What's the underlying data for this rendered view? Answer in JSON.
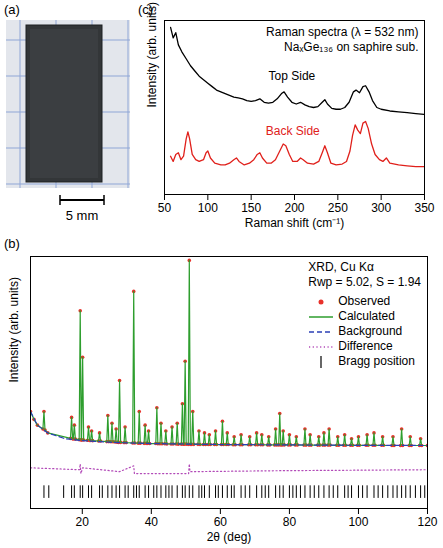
{
  "photo": {
    "panel": "(a)",
    "scale_bar": "5 mm"
  },
  "chart_data": [
    {
      "panel": "(c)",
      "type": "line",
      "title": "Raman spectra (λ = 532 nm)",
      "subtitle": "NaₓGe₁₃₆ on saphire sub.",
      "xlabel": "Raman shift (cm⁻¹)",
      "ylabel": "Intensity (arb. units)",
      "xlim": [
        50,
        350
      ],
      "xticks": [
        50,
        100,
        150,
        200,
        250,
        300,
        350
      ],
      "ylim": [
        0,
        10
      ],
      "tick_labels": "x",
      "series": [
        {
          "name": "Top Side",
          "color": "#000000",
          "x": [
            57,
            60,
            63,
            66,
            70,
            75,
            80,
            85,
            90,
            95,
            100,
            105,
            110,
            115,
            120,
            125,
            130,
            135,
            140,
            145,
            150,
            155,
            160,
            165,
            170,
            175,
            180,
            185,
            188,
            192,
            197,
            202,
            207,
            212,
            217,
            222,
            227,
            232,
            235,
            238,
            243,
            248,
            253,
            258,
            263,
            268,
            271,
            275,
            279,
            282,
            286,
            290,
            295,
            300,
            310,
            320,
            330,
            340,
            350
          ],
          "values": [
            9.6,
            9.0,
            9.3,
            8.6,
            8.2,
            7.8,
            7.4,
            7.1,
            6.8,
            6.6,
            6.4,
            6.2,
            6.0,
            5.9,
            5.8,
            5.7,
            5.6,
            5.55,
            5.5,
            5.4,
            5.35,
            5.4,
            5.5,
            5.3,
            5.25,
            5.3,
            5.5,
            5.8,
            5.9,
            5.6,
            5.3,
            5.2,
            5.3,
            5.15,
            5.05,
            5.0,
            5.05,
            5.3,
            5.45,
            5.2,
            4.95,
            4.9,
            4.9,
            5.0,
            5.3,
            5.9,
            6.0,
            5.85,
            6.2,
            6.25,
            5.9,
            5.4,
            5.0,
            4.9,
            4.8,
            4.75,
            4.7,
            4.65,
            4.6
          ]
        },
        {
          "name": "Back Side",
          "color": "#e0201b",
          "x": [
            57,
            60,
            63,
            66,
            69,
            72,
            75,
            77,
            79,
            82,
            86,
            90,
            95,
            98,
            100,
            103,
            108,
            115,
            120,
            125,
            130,
            133,
            136,
            142,
            148,
            153,
            157,
            160,
            163,
            168,
            173,
            178,
            183,
            187,
            190,
            194,
            198,
            203,
            207,
            210,
            215,
            222,
            228,
            232,
            235,
            238,
            242,
            248,
            255,
            260,
            264,
            267,
            270,
            273,
            276,
            279,
            282,
            285,
            289,
            293,
            298,
            302,
            306,
            310,
            320,
            330,
            340,
            350
          ],
          "values": [
            2.2,
            1.9,
            2.3,
            2.4,
            2.0,
            2.2,
            3.2,
            3.6,
            3.2,
            2.3,
            2.0,
            1.9,
            2.0,
            2.4,
            2.5,
            2.1,
            1.8,
            1.7,
            1.7,
            1.8,
            2.0,
            2.1,
            1.9,
            1.7,
            1.8,
            2.0,
            2.3,
            2.4,
            2.1,
            1.8,
            1.8,
            2.0,
            2.5,
            2.9,
            2.8,
            2.3,
            1.9,
            1.9,
            2.1,
            2.0,
            1.8,
            1.75,
            1.9,
            2.4,
            2.8,
            2.4,
            1.8,
            1.7,
            1.75,
            1.9,
            2.5,
            3.4,
            4.0,
            3.7,
            3.5,
            4.1,
            4.2,
            3.8,
            2.9,
            2.3,
            2.0,
            1.9,
            2.1,
            1.8,
            1.7,
            1.65,
            1.6,
            1.6
          ]
        }
      ]
    },
    {
      "panel": "(b)",
      "type": "line",
      "annotations": [
        "XRD, Cu Kα",
        "Rwp = 5.02, S = 1.94"
      ],
      "xlabel": "2θ (deg)",
      "ylabel": "Intensity (arb. units)",
      "xlim": [
        5,
        120
      ],
      "xticks": [
        20,
        40,
        60,
        80,
        100,
        120
      ],
      "ylim": [
        -30,
        100
      ],
      "tick_labels": "x",
      "legend": "top-right",
      "x": [
        5,
        6,
        7,
        8.6,
        8.9,
        9.2,
        10,
        16.6,
        16.9,
        17.2,
        17.4,
        17.7,
        18.0,
        19.1,
        19.4,
        19.7,
        19.8,
        20.1,
        20.4,
        21.5,
        21.8,
        22.1,
        22.4,
        22.7,
        23.0,
        24.7,
        25.0,
        25.3,
        27.1,
        27.4,
        27.7,
        28.3,
        28.6,
        28.9,
        29.5,
        29.8,
        30.1,
        30.5,
        30.8,
        31.1,
        32.1,
        32.4,
        32.7,
        34.6,
        34.9,
        35.2,
        36.2,
        36.5,
        36.8,
        37.9,
        38.2,
        38.5,
        38.9,
        39.2,
        39.5,
        41.3,
        41.6,
        41.9,
        42.5,
        42.8,
        43.1,
        43.9,
        44.2,
        44.5,
        45.7,
        46.0,
        46.3,
        47.2,
        47.5,
        47.8,
        48.7,
        49.0,
        49.3,
        49.5,
        49.8,
        50.1,
        50.7,
        51.0,
        51.3,
        51.7,
        52.0,
        52.3,
        53.5,
        53.8,
        54.1,
        55.1,
        55.4,
        55.7,
        56.5,
        56.8,
        57.1,
        58.3,
        58.6,
        58.9,
        60.3,
        60.6,
        60.9,
        61.7,
        62.0,
        62.3,
        63.7,
        64.0,
        64.3,
        65.7,
        66.0,
        66.3,
        68.2,
        68.5,
        68.8,
        70.2,
        70.5,
        70.8,
        71.7,
        72.0,
        72.3,
        73.7,
        74.0,
        74.3,
        75.7,
        76.0,
        76.3,
        76.9,
        77.2,
        77.5,
        77.9,
        78.2,
        78.5,
        79.7,
        80.0,
        80.3,
        81.7,
        82.0,
        82.3,
        84.2,
        84.5,
        84.8,
        85.7,
        86.0,
        86.3,
        88.2,
        88.5,
        88.8,
        89.7,
        90.0,
        90.3,
        91.2,
        91.5,
        91.8,
        93.7,
        94.0,
        94.3,
        95.7,
        96.0,
        96.3,
        97.7,
        98.0,
        98.3,
        99.7,
        100.0,
        100.3,
        102.2,
        102.5,
        102.8,
        104.2,
        104.5,
        104.8,
        106.7,
        107.0,
        107.3,
        109.7,
        110.0,
        110.3,
        112.2,
        112.5,
        112.8,
        114.7,
        115.0,
        115.3,
        117.7,
        118.0,
        118.3,
        120
      ],
      "series": [
        {
          "name": "Observed",
          "type": "scatter",
          "marker": "circle",
          "color": "#e8312a",
          "values": [
            20,
            16,
            13,
            11,
            20,
            10.5,
            9,
            6.2,
            17,
            6,
            5.9,
            13,
            5.8,
            5.5,
            72,
            5.4,
            5.4,
            48,
            5.3,
            5.2,
            12,
            5.1,
            5.1,
            10,
            5,
            4.8,
            9,
            4.8,
            4.5,
            18,
            4.5,
            4.4,
            14,
            4.4,
            4.3,
            11,
            4.2,
            4.1,
            36,
            4.1,
            4,
            12,
            4,
            3.8,
            82,
            3.8,
            3.7,
            20,
            3.7,
            3.6,
            13,
            3.6,
            3.6,
            10,
            3.5,
            3.5,
            22,
            3.4,
            3.4,
            14,
            3.4,
            3.4,
            10,
            3.3,
            3.3,
            12,
            3.3,
            3.3,
            14,
            3.2,
            3.2,
            24,
            3.2,
            3.2,
            46,
            3.2,
            3.1,
            98,
            3.1,
            3.1,
            20,
            3.1,
            3.1,
            10,
            3,
            3,
            9,
            3,
            3,
            8,
            3,
            3,
            10,
            3,
            3,
            15,
            3,
            3,
            9,
            3,
            2.9,
            7,
            2.9,
            2.9,
            8,
            2.9,
            2.9,
            7,
            2.9,
            2.9,
            9,
            2.9,
            2.9,
            8,
            2.9,
            2.8,
            7,
            2.8,
            2.8,
            11,
            2.8,
            2.8,
            19,
            2.8,
            2.8,
            10,
            2.8,
            2.8,
            8,
            2.8,
            2.8,
            7,
            2.8,
            2.7,
            11,
            2.7,
            2.7,
            8,
            2.7,
            2.7,
            7,
            2.7,
            2.7,
            9,
            2.7,
            2.7,
            11,
            2.7,
            2.6,
            7,
            2.6,
            2.6,
            8,
            2.6,
            2.6,
            6,
            2.6,
            2.6,
            7,
            2.6,
            2.6,
            8,
            2.6,
            2.6,
            9,
            2.6,
            2.6,
            7,
            2.6,
            2.5,
            7,
            2.5,
            2.5,
            11,
            2.5,
            2.5,
            7,
            2.5,
            2.5,
            6,
            2.5,
            2.5
          ]
        },
        {
          "name": "Calculated",
          "type": "line",
          "line_style": "solid",
          "color": "#2e9e2e",
          "values": [
            20,
            16,
            13,
            11,
            20,
            10.5,
            9,
            6.2,
            17,
            6,
            5.9,
            13,
            5.8,
            5.5,
            72,
            5.4,
            5.4,
            48,
            5.3,
            5.2,
            12,
            5.1,
            5.1,
            10,
            5,
            4.8,
            9,
            4.8,
            4.5,
            18,
            4.5,
            4.4,
            14,
            4.4,
            4.3,
            11,
            4.2,
            4.1,
            36,
            4.1,
            4,
            12,
            4,
            3.8,
            82,
            3.8,
            3.7,
            20,
            3.7,
            3.6,
            13,
            3.6,
            3.6,
            10,
            3.5,
            3.5,
            22,
            3.4,
            3.4,
            14,
            3.4,
            3.4,
            10,
            3.3,
            3.3,
            12,
            3.3,
            3.3,
            14,
            3.2,
            3.2,
            24,
            3.2,
            3.2,
            46,
            3.2,
            3.1,
            98,
            3.1,
            3.1,
            20,
            3.1,
            3.1,
            10,
            3,
            3,
            9,
            3,
            3,
            8,
            3,
            3,
            10,
            3,
            3,
            15,
            3,
            3,
            9,
            3,
            2.9,
            7,
            2.9,
            2.9,
            8,
            2.9,
            2.9,
            7,
            2.9,
            2.9,
            9,
            2.9,
            2.9,
            8,
            2.9,
            2.8,
            7,
            2.8,
            2.8,
            11,
            2.8,
            2.8,
            19,
            2.8,
            2.8,
            10,
            2.8,
            2.8,
            8,
            2.8,
            2.8,
            7,
            2.8,
            2.7,
            11,
            2.7,
            2.7,
            8,
            2.7,
            2.7,
            7,
            2.7,
            2.7,
            9,
            2.7,
            2.7,
            11,
            2.7,
            2.6,
            7,
            2.6,
            2.6,
            8,
            2.6,
            2.6,
            6,
            2.6,
            2.6,
            7,
            2.6,
            2.6,
            8,
            2.6,
            2.6,
            9,
            2.6,
            2.6,
            7,
            2.6,
            2.5,
            7,
            2.5,
            2.5,
            11,
            2.5,
            2.5,
            7,
            2.5,
            2.5,
            6,
            2.5,
            2.5
          ]
        },
        {
          "name": "Background",
          "type": "line",
          "line_style": "dashed",
          "color": "#2b3fb5",
          "x": [
            5,
            7,
            10,
            15,
            20,
            30,
            40,
            60,
            80,
            100,
            120
          ],
          "values": [
            20,
            13,
            9,
            6,
            5,
            4,
            3.5,
            3,
            2.8,
            2.6,
            2.5
          ]
        },
        {
          "name": "Difference",
          "type": "line",
          "line_style": "dotted",
          "color": "#b24ab8",
          "x": [
            5,
            19.2,
            19.4,
            19.6,
            20.1,
            30.8,
            34.9,
            35.1,
            50.8,
            51.0,
            51.2,
            77.2,
            120
          ],
          "values": [
            -9,
            -10,
            -7,
            -12,
            -9,
            -11,
            -8,
            -12,
            -12,
            -7,
            -11,
            -10.5,
            -10
          ]
        }
      ],
      "bragg_positions": {
        "name": "Bragg position",
        "marker": "tick",
        "color": "#000000",
        "x": [
          8.9,
          10.3,
          14.6,
          16.9,
          17.7,
          19.4,
          20.1,
          21.8,
          22.7,
          25.0,
          25.8,
          27.4,
          28.6,
          29.8,
          30.8,
          32.4,
          33.3,
          34.9,
          35.7,
          36.5,
          38.2,
          39.2,
          40.7,
          41.6,
          42.8,
          44.2,
          45.1,
          46.0,
          47.5,
          49.0,
          49.8,
          51.0,
          52.0,
          53.8,
          54.6,
          55.4,
          56.8,
          58.6,
          59.4,
          60.6,
          62.0,
          63.2,
          64.0,
          66.0,
          67.2,
          68.5,
          70.5,
          72.0,
          73.0,
          74.0,
          76.0,
          77.2,
          78.2,
          80.0,
          81.0,
          82.0,
          83.2,
          84.5,
          86.0,
          87.2,
          88.5,
          90.0,
          91.5,
          92.7,
          94.0,
          96.0,
          97.0,
          98.0,
          100.0,
          101.2,
          102.5,
          104.5,
          105.7,
          107.0,
          108.5,
          110.0,
          111.2,
          112.5,
          113.7,
          115.0,
          116.5,
          118.0,
          119.2
        ]
      }
    }
  ]
}
